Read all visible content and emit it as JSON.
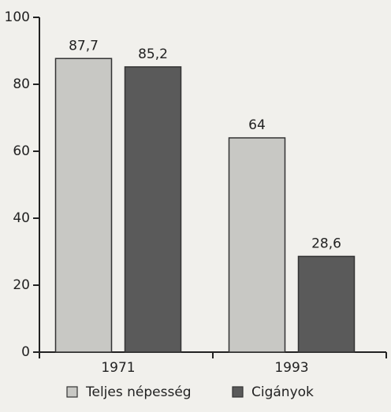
{
  "chart_data": {
    "type": "bar",
    "categories": [
      "1971",
      "1993"
    ],
    "series": [
      {
        "name": "Teljes népesség",
        "color": "#c8c8c4",
        "values": [
          87.7,
          64
        ],
        "value_labels": [
          "87,7",
          "64"
        ]
      },
      {
        "name": "Cigányok",
        "color": "#5a5a5a",
        "values": [
          85.2,
          28.6
        ],
        "value_labels": [
          "85,2",
          "28,6"
        ]
      }
    ],
    "ylim": [
      0,
      100
    ],
    "yticks": [
      0,
      20,
      40,
      60,
      80,
      100
    ],
    "grid": false,
    "legend": "bottom"
  }
}
